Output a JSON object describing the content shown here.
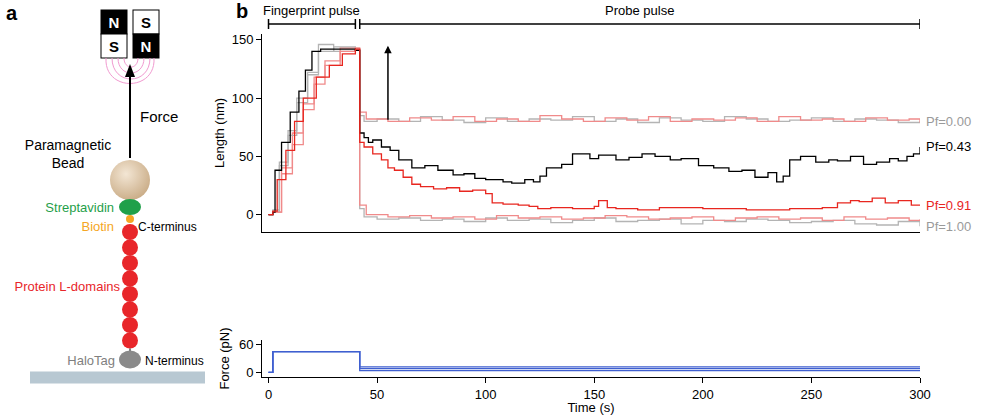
{
  "diagram": {
    "panel": "a",
    "magnets": [
      {
        "top": "N",
        "bottom": "S"
      },
      {
        "top": "S",
        "bottom": "N"
      }
    ],
    "labels": {
      "force": "Force",
      "bead": "Paramagnetic Bead",
      "streptavidin": "Streptavidin",
      "biotin": "Biotin",
      "c_terminus": "C-terminus",
      "domains": "Protein L-domains",
      "halotag": "HaloTag",
      "n_terminus": "N-terminus"
    },
    "domain_count": 8
  },
  "chart_data": [
    {
      "panel": "b",
      "type": "line",
      "ylabel": "Length (nm)",
      "tick_labels": "y",
      "xlim": [
        -3,
        300
      ],
      "ylim": [
        -15,
        155
      ],
      "yticks": [
        0,
        50,
        100,
        150
      ],
      "pulses": [
        {
          "label": "Fingerprint pulse",
          "start": 0,
          "end": 40
        },
        {
          "label": "Probe pulse",
          "start": 42,
          "end": 300
        }
      ],
      "arrow": {
        "x": 55,
        "y_from": 80,
        "y_to": 145
      },
      "series": [
        {
          "name": "Pf=0.00",
          "color": "#b4b4b4",
          "x": [
            0,
            2,
            5,
            9,
            13,
            18,
            23,
            30,
            40,
            42,
            44,
            50,
            60,
            70,
            80,
            90,
            100,
            110,
            120,
            130,
            140,
            150,
            160,
            170,
            180,
            190,
            200,
            210,
            220,
            230,
            240,
            250,
            260,
            270,
            280,
            290,
            300
          ],
          "values": [
            0,
            4,
            45,
            72,
            96,
            120,
            146,
            140,
            141,
            85,
            80,
            82,
            80,
            84,
            81,
            79,
            83,
            80,
            82,
            81,
            84,
            80,
            82,
            79,
            83,
            81,
            80,
            84,
            82,
            80,
            81,
            83,
            80,
            82,
            81,
            79,
            80
          ]
        },
        {
          "color": "#f08a8a",
          "x": [
            0,
            2,
            6,
            11,
            16,
            21,
            26,
            33,
            40,
            42,
            45,
            55,
            65,
            75,
            85,
            95,
            105,
            115,
            125,
            135,
            145,
            155,
            165,
            175,
            185,
            195,
            205,
            215,
            225,
            235,
            245,
            255,
            265,
            275,
            285,
            295,
            300
          ],
          "values": [
            0,
            2,
            40,
            70,
            95,
            118,
            132,
            143,
            142,
            88,
            82,
            80,
            83,
            81,
            84,
            80,
            82,
            80,
            85,
            82,
            80,
            83,
            81,
            84,
            80,
            82,
            81,
            83,
            80,
            84,
            81,
            82,
            80,
            83,
            81,
            82,
            79
          ]
        },
        {
          "name": "Pf=1.00",
          "color": "#b4b4b4",
          "x": [
            0,
            2,
            5,
            9,
            13,
            18,
            23,
            30,
            40,
            42,
            44,
            50,
            60,
            70,
            80,
            90,
            100,
            110,
            120,
            130,
            140,
            150,
            160,
            170,
            180,
            190,
            200,
            210,
            220,
            230,
            240,
            250,
            260,
            270,
            280,
            290,
            300
          ],
          "values": [
            0,
            3,
            42,
            68,
            100,
            122,
            140,
            144,
            142,
            5,
            -2,
            -4,
            -3,
            -5,
            -4,
            -6,
            -3,
            -5,
            -4,
            -7,
            -5,
            -3,
            -6,
            -5,
            -4,
            -8,
            -5,
            -6,
            -4,
            -5,
            -7,
            -6,
            -5,
            -8,
            -9,
            -6,
            -10
          ]
        },
        {
          "color": "#f08a8a",
          "x": [
            0,
            2,
            6,
            11,
            16,
            21,
            26,
            33,
            40,
            42,
            45,
            55,
            65,
            75,
            85,
            95,
            105,
            115,
            125,
            135,
            145,
            155,
            165,
            175,
            185,
            195,
            205,
            215,
            225,
            235,
            245,
            255,
            265,
            275,
            285,
            295,
            300
          ],
          "values": [
            0,
            2,
            35,
            60,
            90,
            112,
            128,
            140,
            143,
            8,
            0,
            -2,
            -1,
            -3,
            -2,
            -4,
            -1,
            -3,
            -2,
            -4,
            -3,
            -1,
            -2,
            -4,
            -3,
            -2,
            -5,
            -3,
            -2,
            -4,
            -3,
            -5,
            -2,
            -4,
            -3,
            -5,
            -4
          ]
        },
        {
          "name": "Pf=0.43",
          "color": "#000000",
          "x": [
            0,
            2,
            3,
            6,
            10,
            14,
            17,
            20,
            24,
            40,
            42,
            44,
            46,
            48,
            52,
            56,
            60,
            66,
            72,
            78,
            85,
            90,
            95,
            100,
            108,
            112,
            118,
            122,
            125,
            128,
            135,
            140,
            148,
            152,
            160,
            166,
            172,
            178,
            185,
            190,
            198,
            205,
            212,
            218,
            224,
            230,
            234,
            237,
            240,
            245,
            252,
            258,
            262,
            268,
            274,
            280,
            286,
            290,
            294,
            297,
            300
          ],
          "values": [
            0,
            2,
            38,
            62,
            88,
            106,
            124,
            140,
            142,
            141,
            70,
            66,
            62,
            64,
            58,
            55,
            47,
            40,
            42,
            38,
            34,
            35,
            31,
            30,
            28,
            27,
            30,
            28,
            33,
            40,
            43,
            52,
            48,
            51,
            47,
            49,
            52,
            50,
            47,
            48,
            42,
            40,
            37,
            38,
            32,
            36,
            28,
            33,
            47,
            50,
            45,
            47,
            46,
            50,
            43,
            45,
            48,
            46,
            50,
            52,
            58
          ]
        },
        {
          "name": "Pf=0.91",
          "color": "#e8261f",
          "x": [
            0,
            2,
            4,
            8,
            12,
            16,
            22,
            28,
            34,
            40,
            42,
            44,
            48,
            52,
            55,
            58,
            62,
            66,
            70,
            76,
            82,
            88,
            94,
            100,
            103,
            108,
            115,
            120,
            124,
            130,
            140,
            150,
            152,
            156,
            160,
            170,
            180,
            200,
            220,
            240,
            255,
            262,
            268,
            272,
            278,
            284,
            290,
            296,
            300
          ],
          "values": [
            0,
            3,
            30,
            55,
            80,
            100,
            118,
            128,
            138,
            142,
            62,
            58,
            52,
            47,
            40,
            38,
            32,
            26,
            24,
            22,
            23,
            20,
            21,
            18,
            10,
            9,
            8,
            7,
            5,
            6,
            5,
            7,
            12,
            6,
            5,
            4,
            6,
            5,
            4,
            5,
            6,
            10,
            12,
            11,
            14,
            10,
            12,
            8,
            8
          ]
        }
      ]
    },
    {
      "type": "line",
      "xlabel": "Time (s)",
      "ylabel": "Force (pN)",
      "xlim": [
        -3,
        300
      ],
      "xticks": [
        0,
        50,
        100,
        150,
        200,
        250,
        300
      ],
      "ylim": [
        -10,
        70
      ],
      "yticks": [
        0,
        60
      ],
      "series": [
        {
          "color": "#3f5fd0",
          "x": [
            0,
            2,
            2,
            42,
            42,
            300
          ],
          "values": [
            0,
            0,
            45,
            45,
            4,
            4
          ]
        },
        {
          "color": "#3f5fd0",
          "x": [
            0,
            2,
            2,
            42,
            42,
            300
          ],
          "values": [
            0,
            0,
            45,
            45,
            8,
            8
          ]
        },
        {
          "color": "#3f5fd0",
          "x": [
            0,
            2,
            2,
            42,
            42,
            300
          ],
          "values": [
            0,
            0,
            45,
            45,
            12,
            12
          ]
        }
      ]
    }
  ]
}
